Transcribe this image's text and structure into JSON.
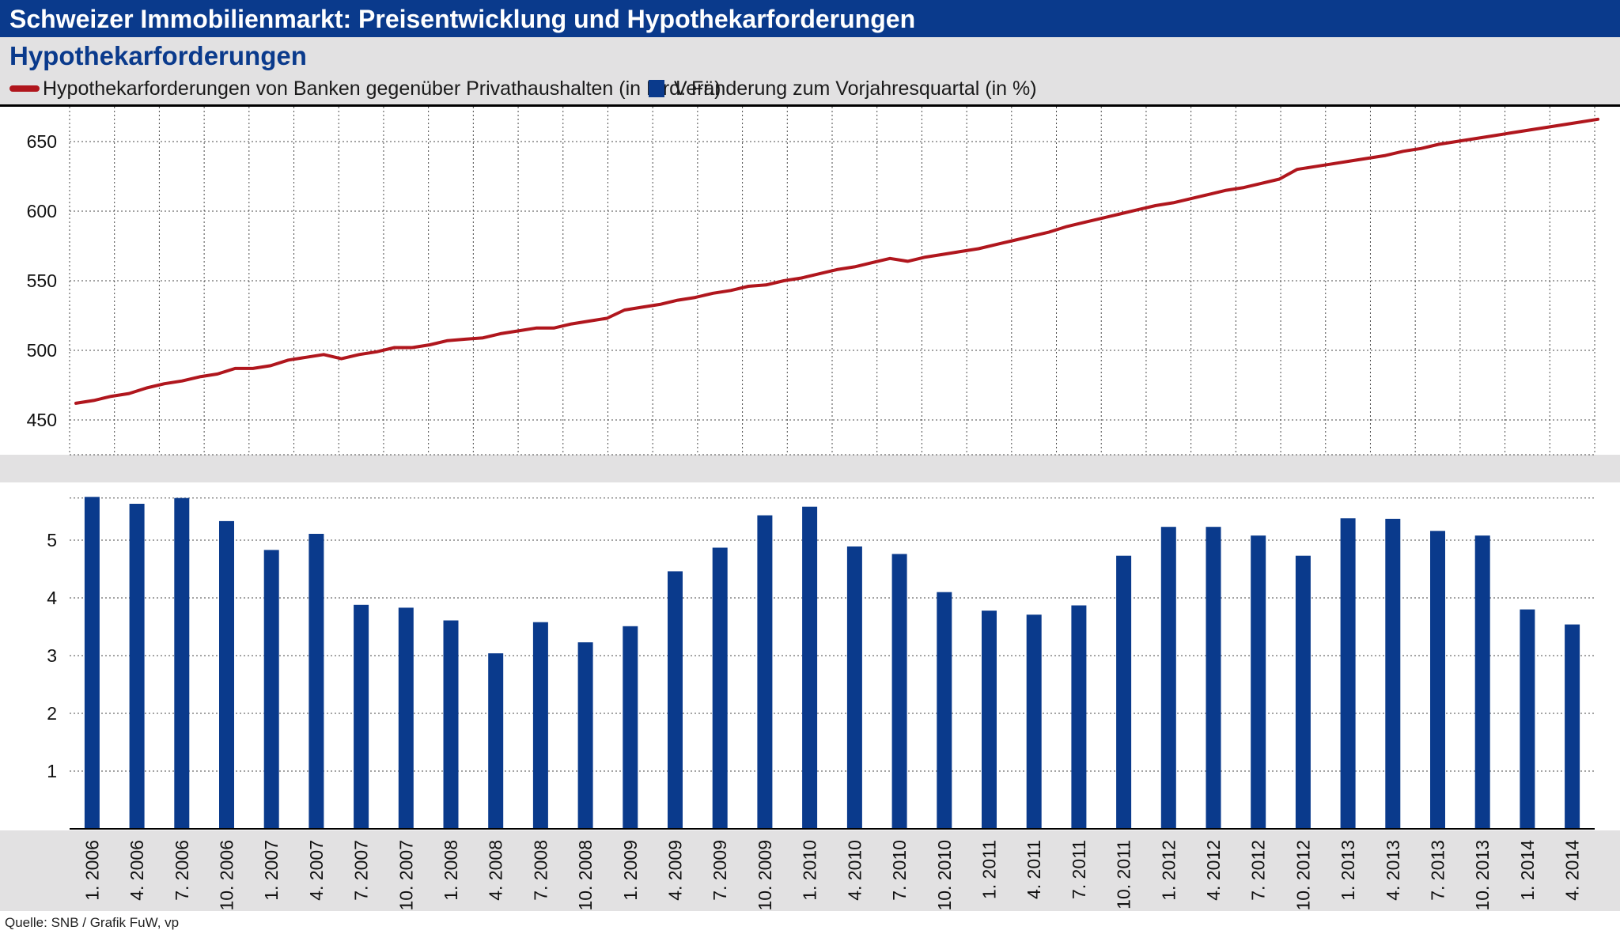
{
  "header": {
    "title": "Schweizer Immobilienmarkt: Preisentwicklung und Hypothekarforderungen",
    "subtitle": "Hypothekarforderungen"
  },
  "legend": {
    "line_label": "Hypothekarforderungen von Banken gegenüber Privathaushalten (in Mrd. Fr.)",
    "bar_label": "Veränderung zum Vorjahresquartal (in %)"
  },
  "source": "Quelle: SNB / Grafik FuW, vp",
  "colors": {
    "header_bg": "#0a3a8c",
    "panel_bg": "#e2e1e2",
    "line": "#b0161d",
    "bar": "#0a3a8c"
  },
  "chart_data": [
    {
      "type": "line",
      "series": [
        {
          "name": "Hypothekarforderungen von Banken gegenüber Privathaushalten (in Mrd. Fr.)",
          "values": [
            462,
            464,
            467,
            469,
            473,
            476,
            478,
            481,
            483,
            487,
            487,
            489,
            493,
            495,
            497,
            494,
            497,
            499,
            502,
            502,
            504,
            507,
            508,
            509,
            512,
            514,
            516,
            516,
            519,
            521,
            523,
            529,
            531,
            533,
            536,
            538,
            541,
            543,
            546,
            547,
            550,
            552,
            555,
            558,
            560,
            563,
            566,
            564,
            567,
            569,
            571,
            573,
            576,
            579,
            582,
            585,
            589,
            592,
            595,
            598,
            601,
            604,
            606,
            609,
            612,
            615,
            617,
            620,
            623,
            630,
            632,
            634,
            636,
            638,
            640,
            643,
            645,
            648,
            650,
            652,
            654,
            656,
            658,
            660,
            662,
            664,
            666
          ]
        }
      ],
      "ylim": [
        425,
        675
      ],
      "yticks": [
        450,
        500,
        550,
        600,
        650
      ],
      "grid": true
    },
    {
      "type": "bar",
      "categories": [
        "1. 2006",
        "4. 2006",
        "7. 2006",
        "10. 2006",
        "1. 2007",
        "4. 2007",
        "7. 2007",
        "10. 2007",
        "1. 2008",
        "4. 2008",
        "7. 2008",
        "10. 2008",
        "1. 2009",
        "4. 2009",
        "7. 2009",
        "10. 2009",
        "1. 2010",
        "4. 2010",
        "7. 2010",
        "10. 2010",
        "1. 2011",
        "4. 2011",
        "7. 2011",
        "10. 2011",
        "1. 2012",
        "4. 2012",
        "7. 2012",
        "10. 2012",
        "1. 2013",
        "4. 2013",
        "7. 2013",
        "10. 2013",
        "1. 2014",
        "4. 2014"
      ],
      "series": [
        {
          "name": "Veränderung zum Vorjahresquartal (in %)",
          "values": [
            5.75,
            5.63,
            5.73,
            5.33,
            4.83,
            5.11,
            3.88,
            3.83,
            3.61,
            3.04,
            3.58,
            3.23,
            3.51,
            4.46,
            4.87,
            5.43,
            5.58,
            4.89,
            4.76,
            4.1,
            3.78,
            3.71,
            3.87,
            4.73,
            5.23,
            5.23,
            5.08,
            4.73,
            5.38,
            5.37,
            5.16,
            5.08,
            3.8,
            3.54
          ]
        }
      ],
      "ylim": [
        0,
        6
      ],
      "yticks": [
        1,
        2,
        3,
        4,
        5
      ],
      "grid": true
    }
  ]
}
